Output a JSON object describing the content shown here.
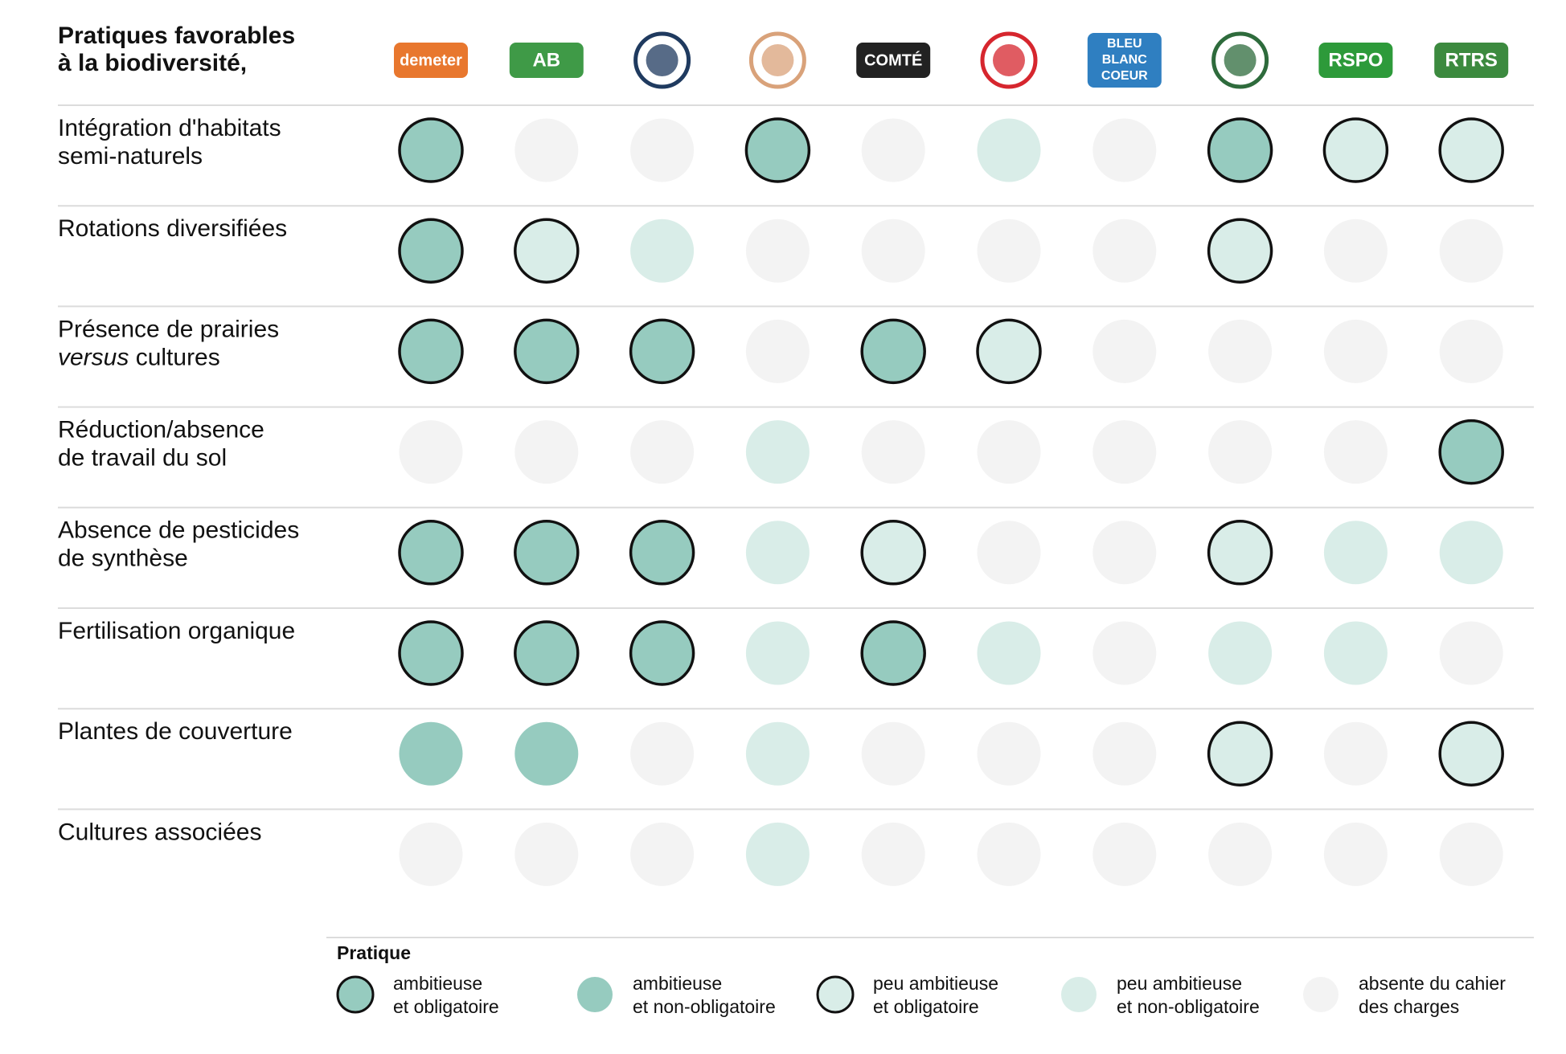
{
  "header": {
    "title": [
      "Pratiques favorables",
      "à la biodiversité,"
    ]
  },
  "columns": [
    {
      "logo": "demeter",
      "color": "#e8772e"
    },
    {
      "logo": "AB",
      "color": "#3f9a47"
    },
    {
      "logo": null,
      "color": "#1f3a5f"
    },
    {
      "logo": null,
      "color": "#d9a27a"
    },
    {
      "logo": "COMTÉ",
      "color": "#222222"
    },
    {
      "logo": null,
      "color": "#d6262e"
    },
    {
      "logo": "BLEU BLANC COEUR",
      "color": "#2f7fc1"
    },
    {
      "logo": null,
      "color": "#2e6b3c"
    },
    {
      "logo": "RSPO",
      "color": "#2d9a3a"
    },
    {
      "logo": "RTRS",
      "color": "#3c8a3f"
    }
  ],
  "styles": {
    "ao": {
      "fill": "#96cbbf",
      "outline": true
    },
    "an": {
      "fill": "#96cbbf",
      "outline": false
    },
    "po": {
      "fill": "#d9ede8",
      "outline": true
    },
    "pn": {
      "fill": "#d9ede8",
      "outline": false
    },
    "x": {
      "fill": "#f3f3f3",
      "outline": false
    }
  },
  "rows": [
    {
      "label": [
        "Intégration d'habitats",
        "semi-naturels"
      ],
      "cells": [
        "ao",
        "x",
        "x",
        "ao",
        "x",
        "pn",
        "x",
        "ao",
        "po",
        "po"
      ]
    },
    {
      "label": [
        "Rotations diversifiées"
      ],
      "cells": [
        "ao",
        "po",
        "pn",
        "x",
        "x",
        "x",
        "x",
        "po",
        "x",
        "x"
      ]
    },
    {
      "label": [
        "Présence de prairies",
        [
          {
            "text": "versus",
            "italic": true
          },
          {
            "text": " cultures",
            "italic": false
          }
        ]
      ],
      "cells": [
        "ao",
        "ao",
        "ao",
        "x",
        "ao",
        "po",
        "x",
        "x",
        "x",
        "x"
      ]
    },
    {
      "label": [
        "Réduction/absence",
        "de travail du sol"
      ],
      "cells": [
        "x",
        "x",
        "x",
        "pn",
        "x",
        "x",
        "x",
        "x",
        "x",
        "ao"
      ]
    },
    {
      "label": [
        "Absence de pesticides",
        "de synthèse"
      ],
      "cells": [
        "ao",
        "ao",
        "ao",
        "pn",
        "po",
        "x",
        "x",
        "po",
        "pn",
        "pn"
      ]
    },
    {
      "label": [
        "Fertilisation organique"
      ],
      "cells": [
        "ao",
        "ao",
        "ao",
        "pn",
        "ao",
        "pn",
        "x",
        "pn",
        "pn",
        "x"
      ]
    },
    {
      "label": [
        "Plantes de couverture"
      ],
      "cells": [
        "an",
        "an",
        "x",
        "pn",
        "x",
        "x",
        "x",
        "po",
        "x",
        "po"
      ]
    },
    {
      "label": [
        "Cultures associées"
      ],
      "cells": [
        "x",
        "x",
        "x",
        "pn",
        "x",
        "x",
        "x",
        "x",
        "x",
        "x"
      ]
    }
  ],
  "legend": {
    "title": "Pratique",
    "items": [
      {
        "key": "ao",
        "lines": [
          "ambitieuse",
          "et obligatoire"
        ]
      },
      {
        "key": "an",
        "lines": [
          "ambitieuse",
          "et non-obligatoire"
        ]
      },
      {
        "key": "po",
        "lines": [
          "peu ambitieuse",
          "et obligatoire"
        ]
      },
      {
        "key": "pn",
        "lines": [
          "peu ambitieuse",
          "et non-obligatoire"
        ]
      },
      {
        "key": "x",
        "lines": [
          "absente du cahier",
          "des charges"
        ]
      }
    ]
  }
}
